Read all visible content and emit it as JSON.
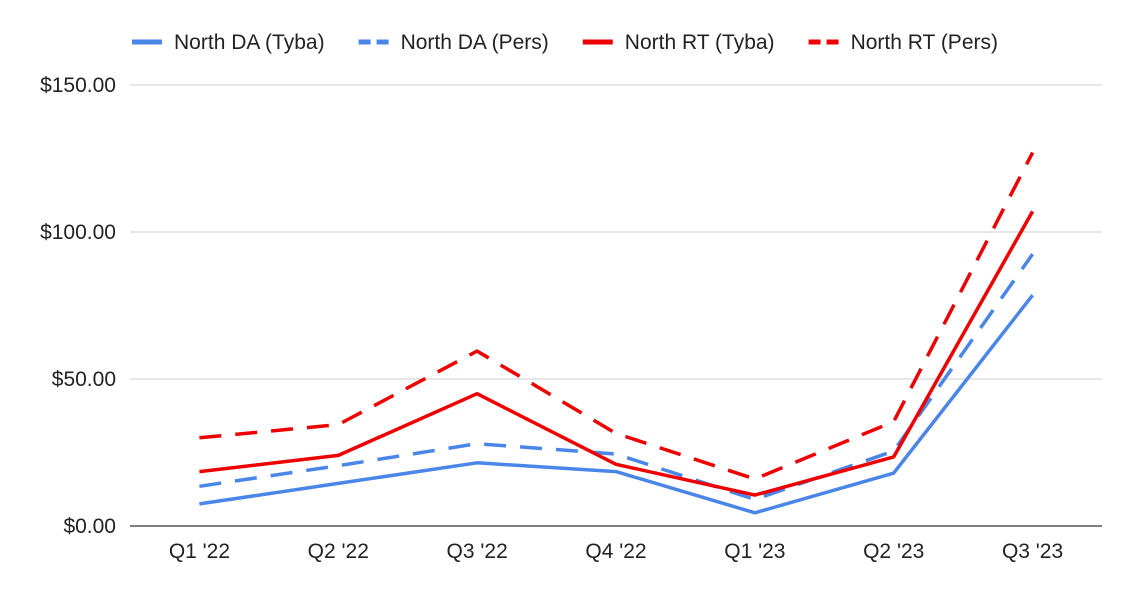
{
  "chart_data": {
    "type": "line",
    "title": "",
    "xlabel": "",
    "ylabel": "",
    "categories": [
      "Q1 '22",
      "Q2 '22",
      "Q3 '22",
      "Q4 '22",
      "Q1 '23",
      "Q2 '23",
      "Q3 '23"
    ],
    "yticks": [
      0,
      50,
      100,
      150
    ],
    "ytick_labels": [
      "$0.00",
      "$50.00",
      "$100.00",
      "$150.00"
    ],
    "ylim": [
      0,
      150
    ],
    "grid": true,
    "legend_position": "top",
    "series": [
      {
        "name": "North DA (Tyba)",
        "color": "#4a86e8",
        "dash": "solid",
        "values": [
          7.5,
          14.5,
          21.5,
          18.5,
          4.5,
          18,
          78.5
        ]
      },
      {
        "name": "North DA (Pers)",
        "color": "#4a86e8",
        "dash": "dashed",
        "values": [
          13.5,
          20.5,
          28,
          24.5,
          9,
          25.5,
          92.5
        ]
      },
      {
        "name": "North RT (Tyba)",
        "color": "#ee0000",
        "dash": "solid",
        "values": [
          18.5,
          24,
          45,
          21,
          10.5,
          23.5,
          107
        ]
      },
      {
        "name": "North RT (Pers)",
        "color": "#ee0000",
        "dash": "dashed",
        "values": [
          30,
          34.5,
          59.5,
          31.5,
          16,
          35.5,
          127
        ]
      }
    ]
  }
}
